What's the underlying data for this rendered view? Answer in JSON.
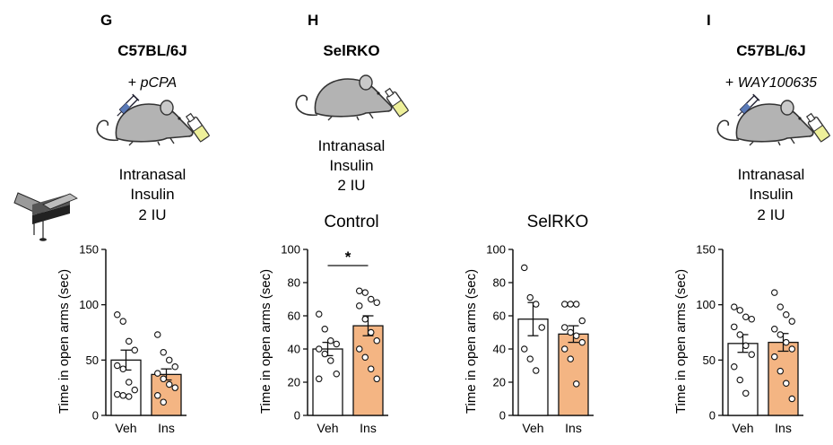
{
  "colors": {
    "veh_fill": "#ffffff",
    "ins_fill": "#f4b583",
    "axis": "#111111",
    "mouse_body": "#b3b3b3",
    "bottle_liquid": "#eef09a"
  },
  "icons": {
    "mouse": "mouse-with-insulin-bottle-icon",
    "syringe": "syringe-icon",
    "maze": "elevated-plus-maze-icon"
  },
  "panels": {
    "g": {
      "letter": "G",
      "strain": "C57BL/6J",
      "drug_prefix": "+ ",
      "drug": "pCPA",
      "treatment": [
        "Intranasal",
        "Insulin",
        "2 IU"
      ]
    },
    "h": {
      "letter": "H",
      "strain": "SelRKO",
      "treatment": [
        "Intranasal",
        "Insulin",
        "2 IU"
      ],
      "control_title": "Control",
      "ko_title": "SelRKO",
      "significance": "*"
    },
    "i": {
      "letter": "I",
      "strain": "C57BL/6J",
      "drug_prefix": "+ ",
      "drug": "WAY100635",
      "treatment": [
        "Intranasal",
        "Insulin",
        "2 IU"
      ]
    }
  },
  "chart_data": [
    {
      "id": "g",
      "type": "bar",
      "categories": [
        "Veh",
        "Ins"
      ],
      "values": [
        50,
        37
      ],
      "errors": [
        9,
        5
      ],
      "points": [
        [
          91,
          85,
          67,
          59,
          45,
          42,
          30,
          23,
          19,
          18,
          17
        ],
        [
          73,
          57,
          50,
          44,
          38,
          33,
          28,
          25,
          18,
          12
        ]
      ],
      "ylabel": "Time in open arms (sec)",
      "ylim": [
        0,
        150
      ],
      "yticks": [
        0,
        50,
        100,
        150
      ]
    },
    {
      "id": "h-control",
      "type": "bar",
      "title": "Control",
      "categories": [
        "Veh",
        "Ins"
      ],
      "values": [
        40,
        54
      ],
      "errors": [
        4,
        6
      ],
      "points": [
        [
          61,
          52,
          45,
          43,
          40,
          37,
          33,
          25,
          22
        ],
        [
          75,
          74,
          70,
          68,
          66,
          58,
          50,
          45,
          40,
          35,
          28,
          22
        ]
      ],
      "ylabel": "Time in open arms (sec)",
      "ylim": [
        0,
        100
      ],
      "yticks": [
        0,
        20,
        40,
        60,
        80,
        100
      ],
      "annotation": "*"
    },
    {
      "id": "h-selrko",
      "type": "bar",
      "title": "SelRKO",
      "categories": [
        "Veh",
        "Ins"
      ],
      "values": [
        58,
        49
      ],
      "errors": [
        10,
        5
      ],
      "points": [
        [
          89,
          71,
          67,
          53,
          40,
          34,
          27
        ],
        [
          67,
          67,
          67,
          57,
          53,
          50,
          48,
          44,
          40,
          34,
          19
        ]
      ],
      "ylabel": "Time in open arms (sec)",
      "ylim": [
        0,
        100
      ],
      "yticks": [
        0,
        20,
        40,
        60,
        80,
        100
      ]
    },
    {
      "id": "i",
      "type": "bar",
      "categories": [
        "Veh",
        "Ins"
      ],
      "values": [
        65,
        66
      ],
      "errors": [
        8,
        8
      ],
      "points": [
        [
          98,
          95,
          89,
          87,
          80,
          73,
          63,
          55,
          44,
          32,
          20
        ],
        [
          111,
          98,
          91,
          85,
          78,
          73,
          66,
          60,
          53,
          40,
          29,
          15
        ]
      ],
      "ylabel": "Time in open arms (sec)",
      "ylim": [
        0,
        150
      ],
      "yticks": [
        0,
        50,
        100,
        150
      ]
    }
  ]
}
